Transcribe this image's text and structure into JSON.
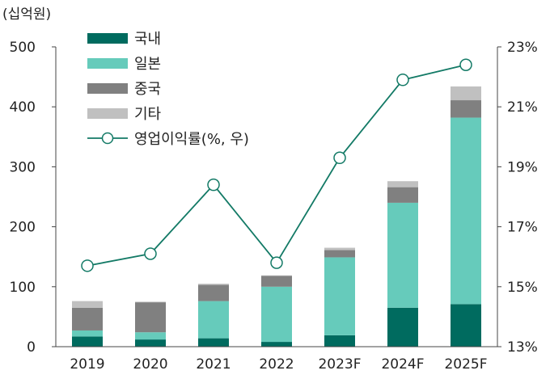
{
  "chart_data": {
    "type": "bar",
    "stacked": true,
    "unit_label": "(십억원)",
    "categories": [
      "2019",
      "2020",
      "2021",
      "2022",
      "2023F",
      "2024F",
      "2025F"
    ],
    "series": [
      {
        "name": "국내",
        "color": "#006b5f",
        "values": [
          17,
          12,
          14,
          8,
          19,
          65,
          71
        ]
      },
      {
        "name": "일본",
        "color": "#66cbbb",
        "values": [
          10,
          12,
          62,
          92,
          130,
          175,
          311
        ]
      },
      {
        "name": "중국",
        "color": "#808080",
        "values": [
          38,
          50,
          27,
          18,
          12,
          26,
          29
        ]
      },
      {
        "name": "기타",
        "color": "#c0c0c0",
        "values": [
          11,
          1,
          2,
          1,
          4,
          10,
          23
        ]
      }
    ],
    "line": {
      "name": "영업이익률(%, 우)",
      "color": "#137a66",
      "values": [
        15.7,
        16.1,
        18.4,
        15.8,
        19.3,
        21.9,
        22.4
      ]
    },
    "ylim": [
      0,
      500
    ],
    "yticks": [
      "0",
      "100",
      "200",
      "300",
      "400",
      "500"
    ],
    "y2lim": [
      13,
      23
    ],
    "y2ticks": [
      "13%",
      "15%",
      "17%",
      "19%",
      "21%",
      "23%"
    ],
    "legend_position": "top-left",
    "grid": false
  }
}
